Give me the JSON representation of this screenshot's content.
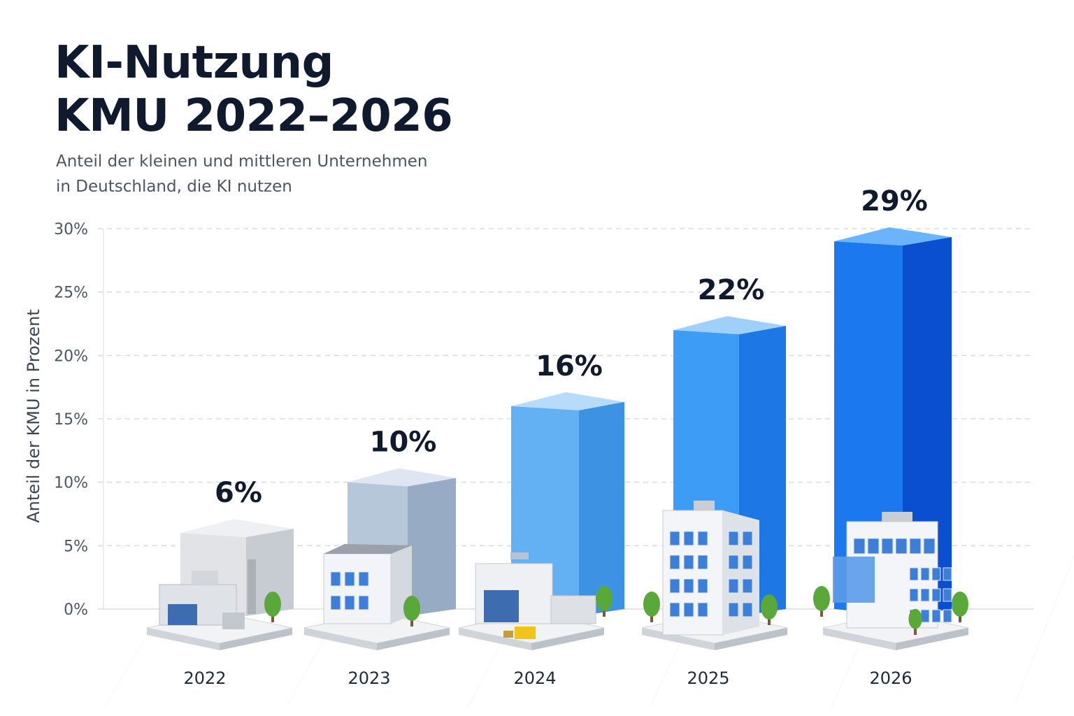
{
  "title_lines": [
    "KI-Nutzung",
    "KMU 2022–2026"
  ],
  "subtitle_lines": [
    "Anteil der kleinen und mittleren Unternehmen",
    "in Deutschland, die KI nutzen"
  ],
  "colors": {
    "title": "#0f1a2e",
    "subtitle": "#4a5566",
    "grid": "#d7dbe1",
    "bars": [
      {
        "front": "#e1e3e7",
        "side": "#c7cbd2",
        "top": "#eef0f3"
      },
      {
        "front": "#b7c7da",
        "side": "#97abc4",
        "top": "#dde6f1"
      },
      {
        "front": "#63b1f3",
        "side": "#3d92e4",
        "top": "#b7dcfb"
      },
      {
        "front": "#3d9df6",
        "side": "#1d78e6",
        "top": "#9fd0fc"
      },
      {
        "front": "#1b78ef",
        "side": "#0a4fd0",
        "top": "#6ab4fb"
      }
    ]
  },
  "chart_data": {
    "type": "bar",
    "title": "KI-Nutzung KMU 2022–2026",
    "subtitle": "Anteil der kleinen und mittleren Unternehmen in Deutschland, die KI nutzen",
    "ylabel": "Anteil der KMU in Prozent",
    "xlabel": "",
    "categories": [
      "2022",
      "2023",
      "2024",
      "2025",
      "2026"
    ],
    "values": [
      6,
      10,
      16,
      22,
      29
    ],
    "value_labels": [
      "6%",
      "10%",
      "16%",
      "22%",
      "29%"
    ],
    "ylim": [
      0,
      30
    ],
    "yticks": [
      0,
      5,
      10,
      15,
      20,
      25,
      30
    ],
    "ytick_labels": [
      "0%",
      "5%",
      "10%",
      "15%",
      "20%",
      "25%",
      "30%"
    ],
    "grid": true,
    "building_icons": [
      "factory-icon",
      "small-office-icon",
      "warehouse-icon",
      "office-tower-icon",
      "glass-office-icon"
    ]
  }
}
